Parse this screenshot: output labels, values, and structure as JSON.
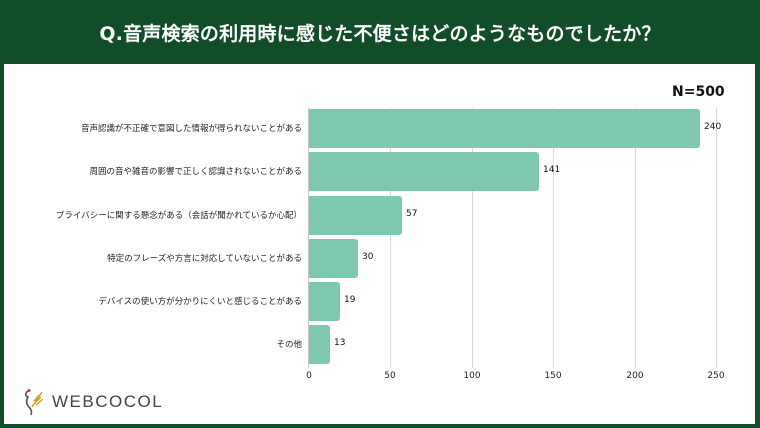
{
  "header": {
    "title": "Q.音声検索の利用時に感じた不便さはどのようなものでしたか？"
  },
  "sample": {
    "label": "N=500"
  },
  "brand": {
    "name": "WEBCOCOL",
    "icon": "bird-wheat-logo-icon"
  },
  "colors": {
    "background": "#124d2a",
    "bar": "#7ec8ad",
    "panel": "#ffffff"
  },
  "chart_data": {
    "type": "bar",
    "orientation": "horizontal",
    "title": "Q.音声検索の利用時に感じた不便さはどのようなものでしたか？",
    "annotation": "N=500",
    "categories": [
      "音声認識が不正確で意図した情報が得られないことがある",
      "周囲の音や雑音の影響で正しく認識されないことがある",
      "プライバシーに関する懸念がある（会話が聞かれているか心配）",
      "特定のフレーズや方言に対応していないことがある",
      "デバイスの使い方が分かりにくいと感じることがある",
      "その他"
    ],
    "values": [
      240,
      141,
      57,
      30,
      19,
      13
    ],
    "xlabel": "",
    "ylabel": "",
    "xlim": [
      0,
      250
    ],
    "xticks": [
      "0",
      "50",
      "100",
      "150",
      "200",
      "250"
    ],
    "grid": "vertical",
    "legend": "none"
  }
}
